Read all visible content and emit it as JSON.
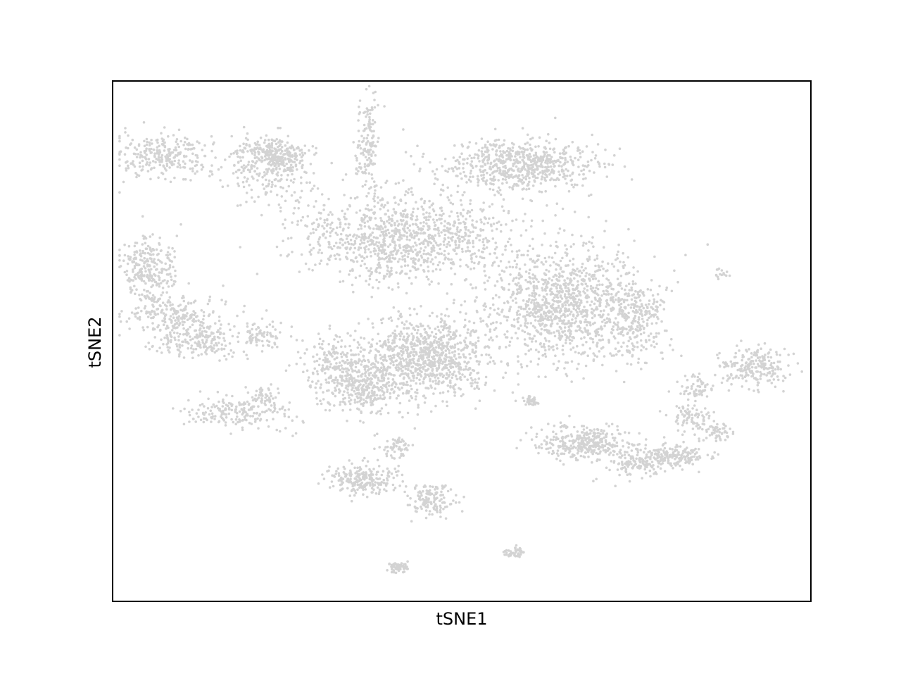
{
  "chart_data": {
    "type": "scatter",
    "title": "",
    "xlabel": "tSNE1",
    "ylabel": "tSNE2",
    "xlim": [
      0,
      100
    ],
    "ylim": [
      0,
      100
    ],
    "x_ticks": "none",
    "y_ticks": "none",
    "grid": false,
    "legend": "none",
    "marker_color": "#d3d3d3",
    "series": [
      {
        "clusters": [
          {
            "center": [
              7.5,
              85.2
            ],
            "spread": [
              6.0,
              4.0
            ],
            "n": 260
          },
          {
            "center": [
              5.0,
              64.0
            ],
            "spread": [
              3.5,
              5.5
            ],
            "n": 260
          },
          {
            "center": [
              8.5,
              55.0
            ],
            "spread": [
              6.0,
              3.5
            ],
            "n": 230
          },
          {
            "center": [
              12.5,
              50.0
            ],
            "spread": [
              5.0,
              3.0
            ],
            "n": 180
          },
          {
            "center": [
              18.0,
              36.5
            ],
            "spread": [
              7.0,
              3.0
            ],
            "n": 200
          },
          {
            "center": [
              22.0,
              84.0
            ],
            "spread": [
              6.0,
              6.0
            ],
            "n": 240
          },
          {
            "center": [
              23.0,
              86.5
            ],
            "spread": [
              4.5,
              2.0
            ],
            "n": 110
          },
          {
            "center": [
              21.0,
              51.0
            ],
            "spread": [
              3.0,
              3.0
            ],
            "n": 80
          },
          {
            "center": [
              21.5,
              39.5
            ],
            "spread": [
              2.0,
              2.0
            ],
            "n": 45
          },
          {
            "center": [
              23.5,
              84.5
            ],
            "spread": [
              3.0,
              2.0
            ],
            "n": 60
          },
          {
            "center": [
              23.8,
              84.8
            ],
            "spread": [
              3.0,
              2.0
            ],
            "n": 40
          },
          {
            "center": [
              33.0,
              46.0
            ],
            "spread": [
              5.0,
              5.0
            ],
            "n": 220
          },
          {
            "center": [
              36.0,
              41.0
            ],
            "spread": [
              5.5,
              4.5
            ],
            "n": 320
          },
          {
            "center": [
              36.0,
              23.5
            ],
            "spread": [
              5.0,
              2.5
            ],
            "n": 220
          },
          {
            "center": [
              45.5,
              19.5
            ],
            "spread": [
              3.0,
              3.0
            ],
            "n": 140
          },
          {
            "center": [
              36.5,
              88.0
            ],
            "spread": [
              1.5,
              7.0
            ],
            "n": 150
          },
          {
            "center": [
              42.0,
              70.0
            ],
            "spread": [
              14.0,
              8.0
            ],
            "n": 1100
          },
          {
            "center": [
              45.0,
              47.0
            ],
            "spread": [
              8.0,
              7.0
            ],
            "n": 900
          },
          {
            "center": [
              40.5,
              29.5
            ],
            "spread": [
              2.0,
              2.0
            ],
            "n": 60
          },
          {
            "center": [
              40.8,
              6.5
            ],
            "spread": [
              1.5,
              1.0
            ],
            "n": 55
          },
          {
            "center": [
              57.5,
              9.5
            ],
            "spread": [
              1.5,
              1.0
            ],
            "n": 45
          },
          {
            "center": [
              58.5,
              84.0
            ],
            "spread": [
              10.0,
              4.5
            ],
            "n": 650
          },
          {
            "center": [
              64.0,
              57.0
            ],
            "spread": [
              10.0,
              10.0
            ],
            "n": 1100
          },
          {
            "center": [
              75.0,
              54.0
            ],
            "spread": [
              4.0,
              7.0
            ],
            "n": 250
          },
          {
            "center": [
              67.0,
              30.5
            ],
            "spread": [
              5.5,
              3.0
            ],
            "n": 320
          },
          {
            "center": [
              75.5,
              27.0
            ],
            "spread": [
              4.0,
              2.5
            ],
            "n": 160
          },
          {
            "center": [
              81.0,
              28.0
            ],
            "spread": [
              4.0,
              2.0
            ],
            "n": 140
          },
          {
            "center": [
              83.0,
              35.0
            ],
            "spread": [
              3.0,
              2.5
            ],
            "n": 90
          },
          {
            "center": [
              83.5,
              41.5
            ],
            "spread": [
              2.5,
              2.0
            ],
            "n": 60
          },
          {
            "center": [
              92.0,
              45.0
            ],
            "spread": [
              4.5,
              3.5
            ],
            "n": 220
          },
          {
            "center": [
              87.0,
              32.5
            ],
            "spread": [
              1.5,
              1.5
            ],
            "n": 45
          },
          {
            "center": [
              60.0,
              38.5
            ],
            "spread": [
              1.0,
              1.0
            ],
            "n": 35
          },
          {
            "center": [
              87.0,
              63.0
            ],
            "spread": [
              1.0,
              1.0
            ],
            "n": 15
          }
        ]
      }
    ]
  }
}
